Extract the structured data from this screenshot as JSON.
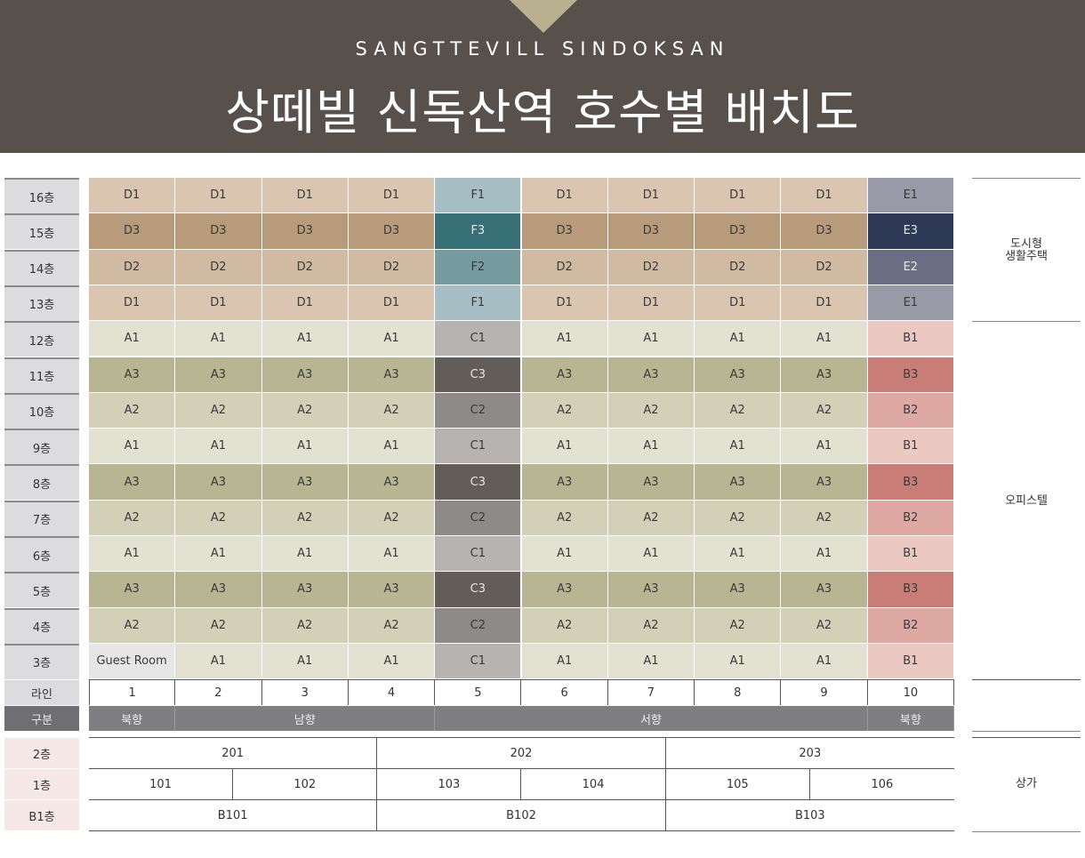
{
  "header": {
    "subtitle": "SANGTTEVILL SINDOKSAN",
    "title": "상떼빌 신독산역 호수별 배치도"
  },
  "colors": {
    "header_bg": "#58504b",
    "notch": "#b8b08e",
    "D1": "#d9c5b0",
    "D2": "#d1baa2",
    "D3": "#b89b7a",
    "F1": "#a6bec4",
    "F2": "#779ca0",
    "F3": "#376f76",
    "E1": "#999aa8",
    "E2": "#6b6d83",
    "E3": "#2e3a55",
    "A1": "#e2e1d2",
    "A2": "#d3d0b8",
    "A3": "#b8b592",
    "C1": "#b6b3b1",
    "C2": "#8e8a88",
    "C3": "#625d59",
    "B1": "#ecc8c2",
    "B2": "#dfa9a3",
    "B3": "#c87e77",
    "Guest Room": "#e6e6e6"
  },
  "floors": [
    {
      "label": "16층",
      "units": [
        "D1",
        "D1",
        "D1",
        "D1",
        "F1",
        "D1",
        "D1",
        "D1",
        "D1",
        "E1"
      ]
    },
    {
      "label": "15층",
      "units": [
        "D3",
        "D3",
        "D3",
        "D3",
        "F3",
        "D3",
        "D3",
        "D3",
        "D3",
        "E3"
      ]
    },
    {
      "label": "14층",
      "units": [
        "D2",
        "D2",
        "D2",
        "D2",
        "F2",
        "D2",
        "D2",
        "D2",
        "D2",
        "E2"
      ]
    },
    {
      "label": "13층",
      "units": [
        "D1",
        "D1",
        "D1",
        "D1",
        "F1",
        "D1",
        "D1",
        "D1",
        "D1",
        "E1"
      ]
    },
    {
      "label": "12층",
      "units": [
        "A1",
        "A1",
        "A1",
        "A1",
        "C1",
        "A1",
        "A1",
        "A1",
        "A1",
        "B1"
      ]
    },
    {
      "label": "11층",
      "units": [
        "A3",
        "A3",
        "A3",
        "A3",
        "C3",
        "A3",
        "A3",
        "A3",
        "A3",
        "B3"
      ]
    },
    {
      "label": "10층",
      "units": [
        "A2",
        "A2",
        "A2",
        "A2",
        "C2",
        "A2",
        "A2",
        "A2",
        "A2",
        "B2"
      ]
    },
    {
      "label": "9층",
      "units": [
        "A1",
        "A1",
        "A1",
        "A1",
        "C1",
        "A1",
        "A1",
        "A1",
        "A1",
        "B1"
      ]
    },
    {
      "label": "8층",
      "units": [
        "A3",
        "A3",
        "A3",
        "A3",
        "C3",
        "A3",
        "A3",
        "A3",
        "A3",
        "B3"
      ]
    },
    {
      "label": "7층",
      "units": [
        "A2",
        "A2",
        "A2",
        "A2",
        "C2",
        "A2",
        "A2",
        "A2",
        "A2",
        "B2"
      ]
    },
    {
      "label": "6층",
      "units": [
        "A1",
        "A1",
        "A1",
        "A1",
        "C1",
        "A1",
        "A1",
        "A1",
        "A1",
        "B1"
      ]
    },
    {
      "label": "5층",
      "units": [
        "A3",
        "A3",
        "A3",
        "A3",
        "C3",
        "A3",
        "A3",
        "A3",
        "A3",
        "B3"
      ]
    },
    {
      "label": "4층",
      "units": [
        "A2",
        "A2",
        "A2",
        "A2",
        "C2",
        "A2",
        "A2",
        "A2",
        "A2",
        "B2"
      ]
    },
    {
      "label": "3층",
      "units": [
        "Guest Room",
        "A1",
        "A1",
        "A1",
        "C1",
        "A1",
        "A1",
        "A1",
        "A1",
        "B1"
      ]
    }
  ],
  "line_row": {
    "label": "라인",
    "values": [
      "1",
      "2",
      "3",
      "4",
      "5",
      "6",
      "7",
      "8",
      "9",
      "10"
    ]
  },
  "direction_row": {
    "label": "구분",
    "groups": [
      {
        "label": "북향",
        "span": 1
      },
      {
        "label": "남향",
        "span": 3
      },
      {
        "label": "서향",
        "span": 5
      },
      {
        "label": "북향",
        "span": 1
      }
    ]
  },
  "categories": [
    {
      "label": "도시형\n생활주택",
      "floors": 4
    },
    {
      "label": "오피스텔",
      "floors": 10
    }
  ],
  "commercial": {
    "category": "상가",
    "rows": [
      {
        "label": "2층",
        "units": [
          "201",
          "202",
          "203"
        ]
      },
      {
        "label": "1층",
        "units": [
          "101",
          "102",
          "103",
          "104",
          "105",
          "106"
        ]
      },
      {
        "label": "B1층",
        "units": [
          "B101",
          "B102",
          "B103"
        ]
      }
    ]
  }
}
